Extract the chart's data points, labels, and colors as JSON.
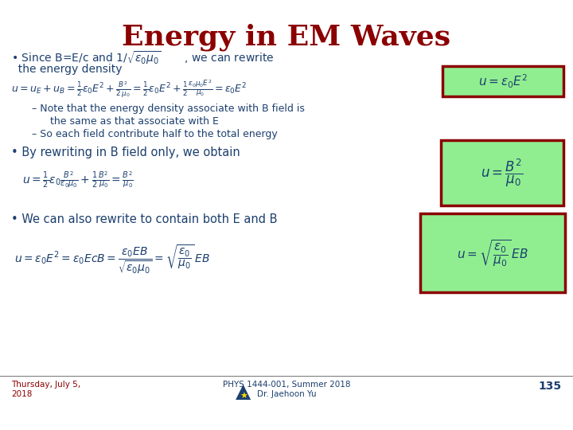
{
  "title": "Energy in EM Waves",
  "title_color": "#8B0000",
  "title_fontsize": 26,
  "background_color": "#FFFFFF",
  "text_color": "#1C3F6E",
  "box_bg_color": "#90EE90",
  "box_border_color": "#8B0000",
  "footer_date": "Thursday, July 5,\n2018",
  "footer_course": "PHYS 1444-001, Summer 2018\nDr. Jaehoon Yu",
  "footer_page": "135",
  "footer_color": "#8B0000",
  "sub_text_color": "#1C3F6E",
  "bullet1_line1": "• Since B=E/c and $1/\\sqrt{\\varepsilon_0\\mu_0}$       , we can rewrite",
  "bullet1_line2": "  the energy density",
  "eq1": "$u =u_E + u_B = \\frac{1}{2}\\varepsilon_0 E^2 + \\frac{B^2}{2\\,\\mu_0} =\\frac{1}{2}\\varepsilon_0 E^2 +\\frac{1}{2}\\frac{\\varepsilon_0\\mu_0 E^2}{\\mu_0} = \\varepsilon_0 E^2$",
  "box1_eq": "$u = \\varepsilon_0 E^2$",
  "sub1": "– Note that the energy density associate with B field is",
  "sub1b": "  the same as that associate with E",
  "sub2": "– So each field contribute half to the total energy",
  "bullet2": "• By rewriting in B field only, we obtain",
  "eq2": "$u = \\frac{1}{2}\\varepsilon_0 \\frac{B^2}{\\varepsilon_0\\mu_0} + \\frac{1}{2}\\frac{B^2}{\\mu_0} = \\frac{B^2}{\\mu_0}$",
  "box2_eq": "$u = \\dfrac{B^2}{\\mu_0}$",
  "bullet3": "• We can also rewrite to contain both E and B",
  "eq3": "$u =\\varepsilon_0 E^2 =\\varepsilon_0 EcB = \\dfrac{\\varepsilon_0 EB}{\\sqrt{\\varepsilon_0\\mu_0}} = \\sqrt{\\dfrac{\\varepsilon_0}{\\mu_0}}\\,EB$",
  "box3_eq": "$u = \\sqrt{\\dfrac{\\varepsilon_0}{\\mu_0}}\\,EB$"
}
